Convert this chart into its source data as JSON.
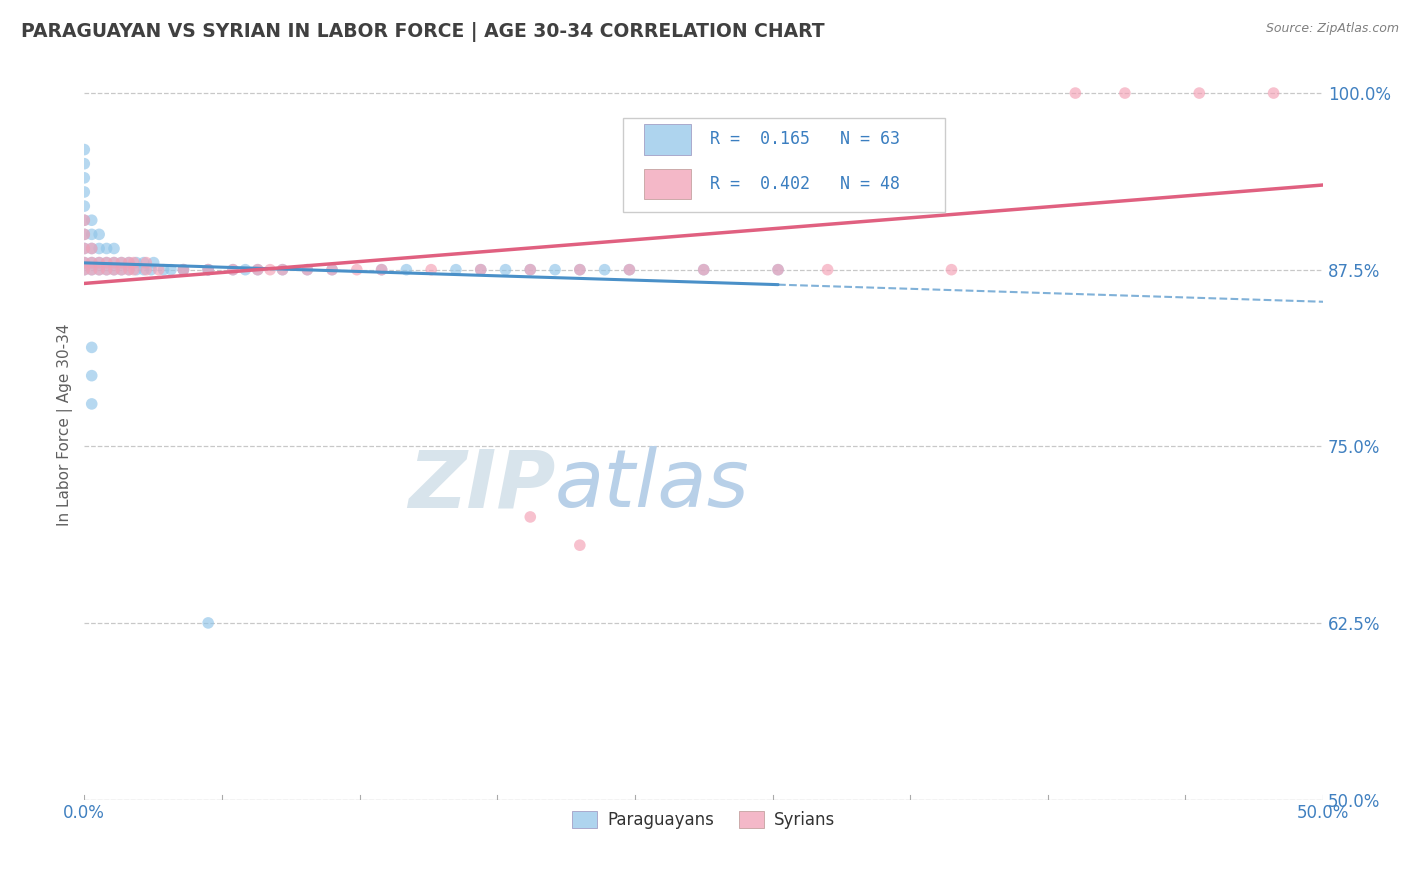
{
  "title": "PARAGUAYAN VS SYRIAN IN LABOR FORCE | AGE 30-34 CORRELATION CHART",
  "source_text": "Source: ZipAtlas.com",
  "ylabel": "In Labor Force | Age 30-34",
  "xlim": [
    0.0,
    0.5
  ],
  "ylim": [
    0.5,
    1.03
  ],
  "xtick_positions": [
    0.0,
    0.5
  ],
  "xtick_labels": [
    "0.0%",
    "50.0%"
  ],
  "ytick_vals": [
    0.5,
    0.625,
    0.75,
    0.875,
    1.0
  ],
  "ytick_labels": [
    "50.0%",
    "62.5%",
    "75.0%",
    "87.5%",
    "100.0%"
  ],
  "paraguayan_R": 0.165,
  "paraguayan_N": 63,
  "syrian_R": 0.402,
  "syrian_N": 48,
  "blue_scatter_color": "#90C4E8",
  "pink_scatter_color": "#F4A0B5",
  "blue_line_color": "#4A90C8",
  "pink_line_color": "#E06080",
  "title_color": "#404040",
  "watermark_color": "#dce8f0",
  "background_color": "#ffffff",
  "grid_color": "#c8c8c8",
  "axis_label_color": "#606060",
  "ytick_color": "#4080C0",
  "xtick_color": "#4080C0",
  "legend_text_color": "#3B7EC0",
  "source_color": "#808080",
  "blue_legend_fill": "#AED4EE",
  "pink_legend_fill": "#F4B8C8",
  "paraguayan_x": [
    0.0,
    0.0,
    0.0,
    0.0,
    0.0,
    0.0,
    0.0,
    0.0,
    0.0,
    0.0,
    0.003,
    0.003,
    0.003,
    0.003,
    0.003,
    0.006,
    0.006,
    0.006,
    0.006,
    0.009,
    0.009,
    0.009,
    0.012,
    0.012,
    0.012,
    0.015,
    0.015,
    0.018,
    0.018,
    0.021,
    0.021,
    0.024,
    0.024,
    0.027,
    0.028,
    0.032,
    0.035,
    0.04,
    0.04,
    0.05,
    0.05,
    0.06,
    0.065,
    0.07,
    0.08,
    0.09,
    0.1,
    0.12,
    0.13,
    0.15,
    0.16,
    0.17,
    0.18,
    0.19,
    0.2,
    0.21,
    0.22,
    0.25,
    0.28,
    0.003,
    0.003,
    0.003,
    0.05
  ],
  "paraguayan_y": [
    0.875,
    0.88,
    0.89,
    0.9,
    0.91,
    0.92,
    0.93,
    0.94,
    0.95,
    0.96,
    0.875,
    0.88,
    0.89,
    0.9,
    0.91,
    0.875,
    0.88,
    0.89,
    0.9,
    0.875,
    0.88,
    0.89,
    0.875,
    0.88,
    0.89,
    0.875,
    0.88,
    0.875,
    0.88,
    0.875,
    0.88,
    0.875,
    0.88,
    0.875,
    0.88,
    0.875,
    0.875,
    0.875,
    0.875,
    0.875,
    0.875,
    0.875,
    0.875,
    0.875,
    0.875,
    0.875,
    0.875,
    0.875,
    0.875,
    0.875,
    0.875,
    0.875,
    0.875,
    0.875,
    0.875,
    0.875,
    0.875,
    0.875,
    0.875,
    0.82,
    0.8,
    0.78,
    0.625
  ],
  "syrian_x": [
    0.0,
    0.0,
    0.0,
    0.0,
    0.0,
    0.003,
    0.003,
    0.003,
    0.006,
    0.006,
    0.009,
    0.009,
    0.012,
    0.012,
    0.015,
    0.015,
    0.018,
    0.018,
    0.02,
    0.02,
    0.025,
    0.025,
    0.03,
    0.04,
    0.05,
    0.06,
    0.07,
    0.075,
    0.08,
    0.09,
    0.1,
    0.11,
    0.12,
    0.14,
    0.16,
    0.18,
    0.2,
    0.22,
    0.25,
    0.28,
    0.3,
    0.35,
    0.4,
    0.42,
    0.45,
    0.48,
    0.18,
    0.2
  ],
  "syrian_y": [
    0.875,
    0.88,
    0.89,
    0.9,
    0.91,
    0.875,
    0.88,
    0.89,
    0.875,
    0.88,
    0.875,
    0.88,
    0.875,
    0.88,
    0.875,
    0.88,
    0.875,
    0.88,
    0.875,
    0.88,
    0.875,
    0.88,
    0.875,
    0.875,
    0.875,
    0.875,
    0.875,
    0.875,
    0.875,
    0.875,
    0.875,
    0.875,
    0.875,
    0.875,
    0.875,
    0.875,
    0.875,
    0.875,
    0.875,
    0.875,
    0.875,
    0.875,
    1.0,
    1.0,
    1.0,
    1.0,
    0.7,
    0.68
  ]
}
